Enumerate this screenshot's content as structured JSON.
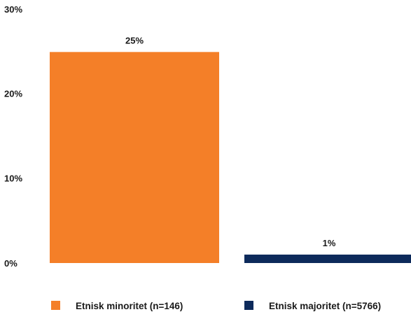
{
  "chart_data": {
    "type": "bar",
    "title": "",
    "xlabel": "",
    "ylabel": "",
    "ylim": [
      0,
      30
    ],
    "yticks": [
      "0%",
      "10%",
      "20%",
      "30%"
    ],
    "grid": false,
    "legend_position": "bottom",
    "categories": [
      "Etnisk minoritet (n=146)",
      "Etnisk majoritet (n=5766)"
    ],
    "values": [
      25,
      1
    ],
    "data_labels": [
      "25%",
      "1%"
    ],
    "colors": [
      "#f47f28",
      "#0d2a5b"
    ]
  }
}
